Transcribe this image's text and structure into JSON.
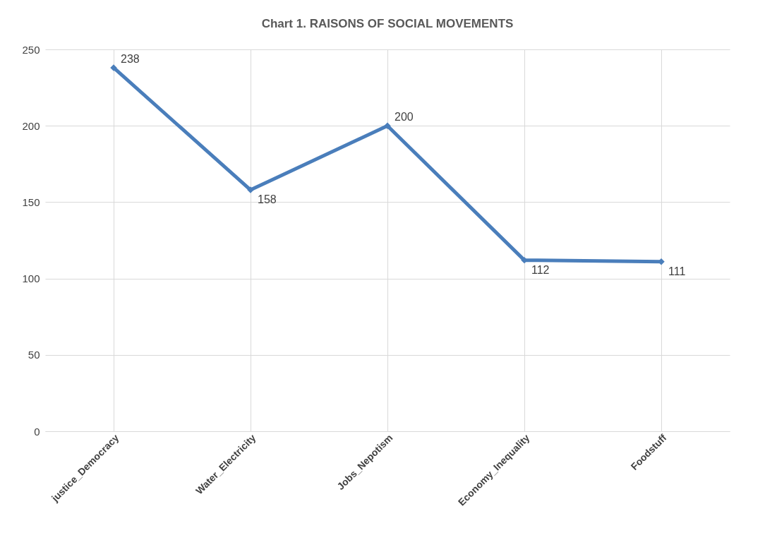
{
  "chart_data": {
    "type": "line",
    "title": "Chart 1.  RAISONS OF SOCIAL MOVEMENTS",
    "categories": [
      "justice_Democracy",
      "Water_Electricity",
      "Jobs_Nepotism",
      "Economy_Inequality",
      "Foodstuff"
    ],
    "series": [
      {
        "color": "#4a7ebb",
        "values": [
          238,
          158,
          200,
          112,
          111
        ]
      }
    ],
    "ylim": [
      0,
      250
    ],
    "yticks": [
      0,
      50,
      100,
      150,
      200,
      250
    ],
    "grid": true,
    "marker": "diamond",
    "line_style": "solid",
    "data_labels": true
  }
}
